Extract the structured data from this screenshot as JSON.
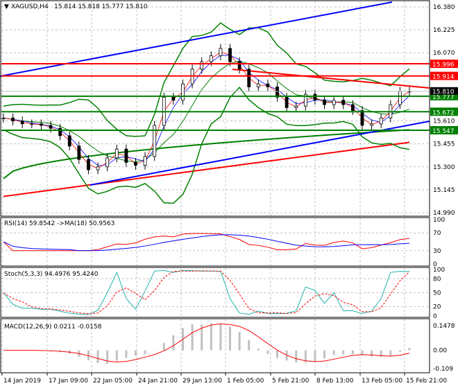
{
  "header": {
    "symbol": "XAGUSD,H4",
    "ohlc": "15.814 15.818 15.777 15.810"
  },
  "colors": {
    "up_candle": "#000000",
    "resistance": "#ff0000",
    "support": "#008000",
    "trend": "#0000ff",
    "grid": "#c0c0c0",
    "rsi": "#ff0000",
    "rsi_ma": "#0000ff",
    "stoch_main": "#20b2aa",
    "stoch_signal": "#ff0000",
    "macd_hist": "#c0c0c0",
    "macd_signal": "#ff0000"
  },
  "chart_data": [
    {
      "type": "line",
      "title": "XAGUSD,H4",
      "price_axis_ticks": [
        "16.380",
        "16.225",
        "16.070",
        "15.610",
        "15.455",
        "15.300",
        "15.145",
        "14.990"
      ],
      "ylim": [
        14.99,
        16.38
      ],
      "time_axis_ticks": [
        "14 Jan 2019",
        "17 Jan 09:00",
        "22 Jan 05:00",
        "24 Jan 21:00",
        "29 Jan 13:00",
        "1 Feb 05:00",
        "5 Feb 21:00",
        "8 Feb 13:00",
        "13 Feb 05:00",
        "15 Feb 21:00"
      ],
      "closes": [
        15.63,
        15.61,
        15.59,
        15.59,
        15.58,
        15.56,
        15.51,
        15.44,
        15.35,
        15.28,
        15.3,
        15.36,
        15.42,
        15.33,
        15.31,
        15.37,
        15.58,
        15.77,
        15.75,
        15.86,
        15.96,
        16.01,
        16.05,
        16.1,
        16.01,
        15.96,
        15.84,
        15.86,
        15.84,
        15.77,
        15.7,
        15.71,
        15.79,
        15.75,
        15.72,
        15.75,
        15.72,
        15.68,
        15.58,
        15.59,
        15.63,
        15.72,
        15.81,
        15.81
      ],
      "levels": [
        {
          "price": "15.996",
          "color": "resistance"
        },
        {
          "price": "15.914",
          "color": "resistance"
        },
        {
          "price": "15.777",
          "color": "support"
        },
        {
          "price": "15.672",
          "color": "support"
        },
        {
          "price": "15.547",
          "color": "support"
        }
      ],
      "current_price": "15.810"
    },
    {
      "type": "line",
      "title": "RSI(14) 59.8542  ->MA(18) 50.9563",
      "ticks": [
        "100",
        "70",
        "30",
        "0"
      ],
      "ylim": [
        0,
        100
      ]
    },
    {
      "type": "line",
      "title": "Stoch(5,3,3) 94.4976 95.4240",
      "ticks": [
        "100",
        "80",
        "50",
        "20",
        "0"
      ],
      "ylim": [
        0,
        100
      ]
    },
    {
      "type": "bar",
      "title": "MACD(12,26,9) 0.0211 -0.0158",
      "ticks": [
        "0.1478",
        "0.00",
        "-0.109"
      ],
      "ylim": [
        -0.109,
        0.1478
      ]
    }
  ]
}
